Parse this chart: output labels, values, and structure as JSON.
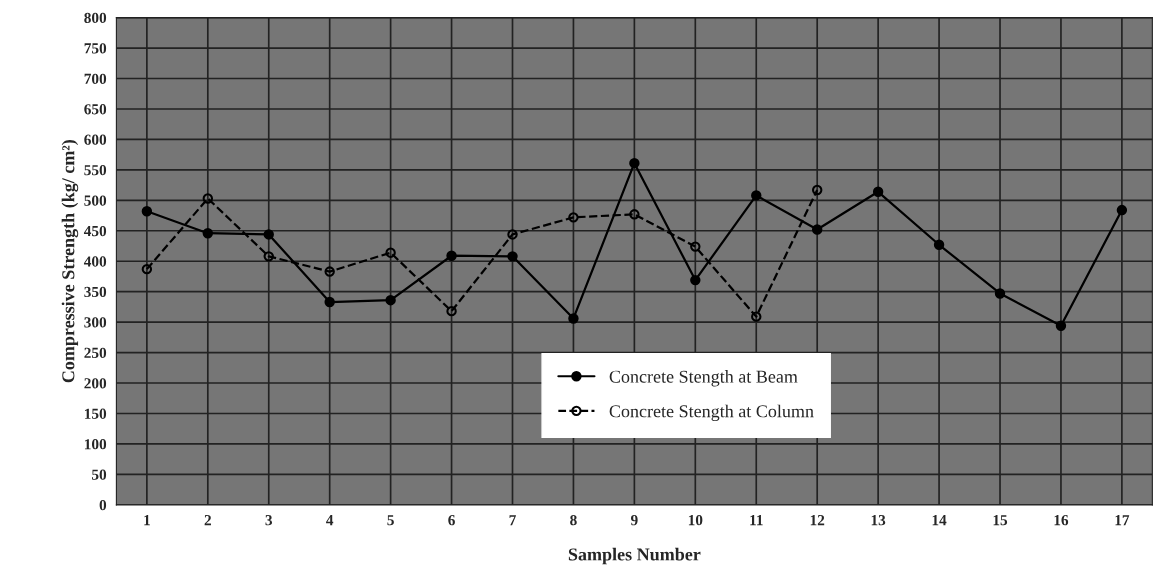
{
  "chart_data": {
    "type": "line",
    "xlabel": "Samples Number",
    "ylabel": "Compressive Strength (kg/ cm²)",
    "categories": [
      "1",
      "2",
      "3",
      "4",
      "5",
      "6",
      "7",
      "8",
      "9",
      "10",
      "11",
      "12",
      "13",
      "14",
      "15",
      "16",
      "17"
    ],
    "series": [
      {
        "name": "Concrete Stength at Beam",
        "color": "#000000",
        "line_style": "solid",
        "values": [
          482,
          446,
          444,
          333,
          336,
          409,
          408,
          306,
          561,
          369,
          508,
          452,
          514,
          427,
          347,
          294,
          484
        ]
      },
      {
        "name": "Concrete Stength at Column",
        "color": "#000000",
        "line_style": "dashed",
        "values": [
          387,
          503,
          408,
          383,
          414,
          318,
          444,
          472,
          477,
          424,
          309,
          517,
          null,
          null,
          null,
          null,
          null
        ]
      }
    ],
    "ylim": [
      0,
      800
    ],
    "yticks": [
      0,
      50,
      100,
      150,
      200,
      250,
      300,
      350,
      400,
      450,
      500,
      550,
      600,
      650,
      700,
      750,
      800
    ],
    "grid": true,
    "legend": "bottom",
    "marker": "circle"
  }
}
